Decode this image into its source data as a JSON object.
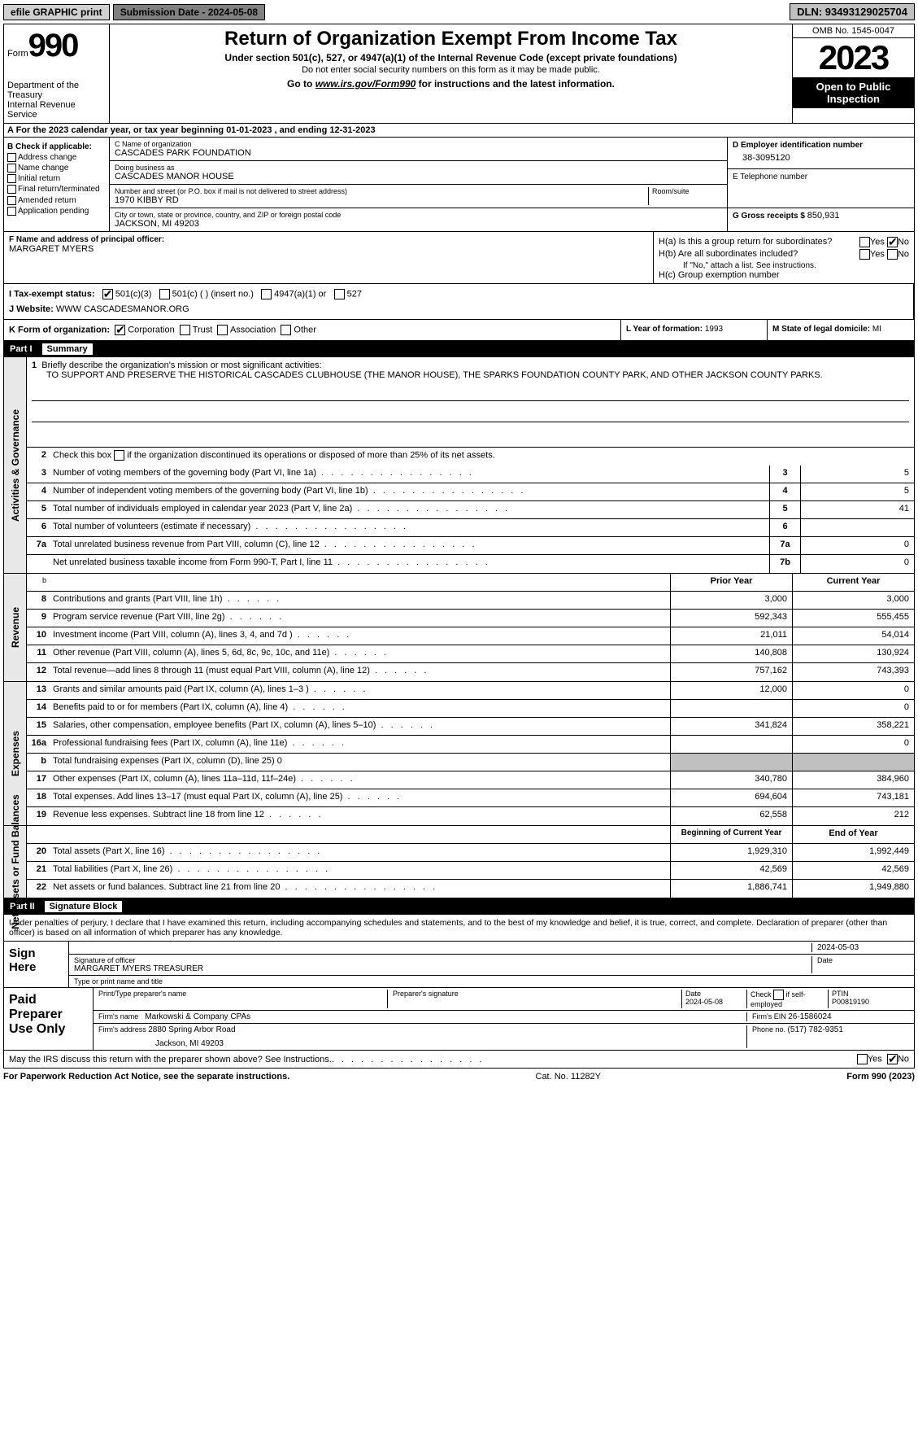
{
  "topbar": {
    "efile": "efile GRAPHIC print",
    "submission": "Submission Date - 2024-05-08",
    "dln": "DLN: 93493129025704"
  },
  "header": {
    "form_label": "Form",
    "form_num": "990",
    "dept1": "Department of the Treasury",
    "dept2": "Internal Revenue Service",
    "title": "Return of Organization Exempt From Income Tax",
    "sub1": "Under section 501(c), 527, or 4947(a)(1) of the Internal Revenue Code (except private foundations)",
    "sub2": "Do not enter social security numbers on this form as it may be made public.",
    "goto_prefix": "Go to ",
    "goto_link": "www.irs.gov/Form990",
    "goto_suffix": " for instructions and the latest information.",
    "omb": "OMB No. 1545-0047",
    "year": "2023",
    "open": "Open to Public Inspection"
  },
  "sectionA": "A For the 2023 calendar year, or tax year beginning 01-01-2023   , and ending 12-31-2023",
  "colB": {
    "header": "B Check if applicable:",
    "items": [
      "Address change",
      "Name change",
      "Initial return",
      "Final return/terminated",
      "Amended return",
      "Application pending"
    ]
  },
  "colC": {
    "name_label": "C Name of organization",
    "name": "CASCADES PARK FOUNDATION",
    "dba_label": "Doing business as",
    "dba": "CASCADES MANOR HOUSE",
    "street_label": "Number and street (or P.O. box if mail is not delivered to street address)",
    "street": "1970 KIBBY RD",
    "room_label": "Room/suite",
    "city_label": "City or town, state or province, country, and ZIP or foreign postal code",
    "city": "JACKSON, MI  49203"
  },
  "colDE": {
    "d_label": "D Employer identification number",
    "d_val": "38-3095120",
    "e_label": "E Telephone number",
    "g_label": "G Gross receipts $ ",
    "g_val": "850,931"
  },
  "rowF": {
    "f_label": "F  Name and address of principal officer:",
    "f_val": "MARGARET MYERS",
    "ha": "H(a)  Is this a group return for subordinates?",
    "hb": "H(b)  Are all subordinates included?",
    "hb_note": "If \"No,\" attach a list. See instructions.",
    "hc": "H(c)  Group exemption number  "
  },
  "rowI": {
    "i_label": "I    Tax-exempt status:",
    "i_501c3": "501(c)(3)",
    "i_501c": "501(c) (  ) (insert no.)",
    "i_4947": "4947(a)(1) or",
    "i_527": "527",
    "j_label": "J    Website: ",
    "j_val": "WWW CASCADESMANOR.ORG"
  },
  "rowK": {
    "k_label": "K Form of organization:",
    "k_corp": "Corporation",
    "k_trust": "Trust",
    "k_assoc": "Association",
    "k_other": "Other",
    "l_label": "L Year of formation: ",
    "l_val": "1993",
    "m_label": "M State of legal domicile: ",
    "m_val": "MI"
  },
  "part1": {
    "num": "Part I",
    "title": "Summary"
  },
  "summary": {
    "q1_label": "Briefly describe the organization's mission or most significant activities:",
    "q1_text": "TO SUPPORT AND PRESERVE THE HISTORICAL CASCADES CLUBHOUSE (THE MANOR HOUSE), THE SPARKS FOUNDATION COUNTY PARK, AND OTHER JACKSON COUNTY PARKS.",
    "q2": "Check this box       if the organization discontinued its operations or disposed of more than 25% of its net assets.",
    "rows_ag": [
      {
        "n": "3",
        "t": "Number of voting members of the governing body (Part VI, line 1a)",
        "box": "3",
        "v": "5"
      },
      {
        "n": "4",
        "t": "Number of independent voting members of the governing body (Part VI, line 1b)",
        "box": "4",
        "v": "5"
      },
      {
        "n": "5",
        "t": "Total number of individuals employed in calendar year 2023 (Part V, line 2a)",
        "box": "5",
        "v": "41"
      },
      {
        "n": "6",
        "t": "Total number of volunteers (estimate if necessary)",
        "box": "6",
        "v": ""
      },
      {
        "n": "7a",
        "t": "Total unrelated business revenue from Part VIII, column (C), line 12",
        "box": "7a",
        "v": "0"
      },
      {
        "n": "",
        "t": "Net unrelated business taxable income from Form 990-T, Part I, line 11",
        "box": "7b",
        "v": "0"
      }
    ],
    "col_prior": "Prior Year",
    "col_curr": "Current Year",
    "revenue": [
      {
        "n": "8",
        "t": "Contributions and grants (Part VIII, line 1h)",
        "p": "3,000",
        "c": "3,000"
      },
      {
        "n": "9",
        "t": "Program service revenue (Part VIII, line 2g)",
        "p": "592,343",
        "c": "555,455"
      },
      {
        "n": "10",
        "t": "Investment income (Part VIII, column (A), lines 3, 4, and 7d )",
        "p": "21,011",
        "c": "54,014"
      },
      {
        "n": "11",
        "t": "Other revenue (Part VIII, column (A), lines 5, 6d, 8c, 9c, 10c, and 11e)",
        "p": "140,808",
        "c": "130,924"
      },
      {
        "n": "12",
        "t": "Total revenue—add lines 8 through 11 (must equal Part VIII, column (A), line 12)",
        "p": "757,162",
        "c": "743,393"
      }
    ],
    "expenses": [
      {
        "n": "13",
        "t": "Grants and similar amounts paid (Part IX, column (A), lines 1–3 )",
        "p": "12,000",
        "c": "0"
      },
      {
        "n": "14",
        "t": "Benefits paid to or for members (Part IX, column (A), line 4)",
        "p": "",
        "c": "0"
      },
      {
        "n": "15",
        "t": "Salaries, other compensation, employee benefits (Part IX, column (A), lines 5–10)",
        "p": "341,824",
        "c": "358,221"
      },
      {
        "n": "16a",
        "t": "Professional fundraising fees (Part IX, column (A), line 11e)",
        "p": "",
        "c": "0"
      },
      {
        "n": "b",
        "t": "Total fundraising expenses (Part IX, column (D), line 25) 0",
        "p": "SHADE",
        "c": "SHADE"
      },
      {
        "n": "17",
        "t": "Other expenses (Part IX, column (A), lines 11a–11d, 11f–24e)",
        "p": "340,780",
        "c": "384,960"
      },
      {
        "n": "18",
        "t": "Total expenses. Add lines 13–17 (must equal Part IX, column (A), line 25)",
        "p": "694,604",
        "c": "743,181"
      },
      {
        "n": "19",
        "t": "Revenue less expenses. Subtract line 18 from line 12",
        "p": "62,558",
        "c": "212"
      }
    ],
    "col_begin": "Beginning of Current Year",
    "col_end": "End of Year",
    "netassets": [
      {
        "n": "20",
        "t": "Total assets (Part X, line 16)",
        "p": "1,929,310",
        "c": "1,992,449"
      },
      {
        "n": "21",
        "t": "Total liabilities (Part X, line 26)",
        "p": "42,569",
        "c": "42,569"
      },
      {
        "n": "22",
        "t": "Net assets or fund balances. Subtract line 21 from line 20",
        "p": "1,886,741",
        "c": "1,949,880"
      }
    ],
    "side_ag": "Activities & Governance",
    "side_rev": "Revenue",
    "side_exp": "Expenses",
    "side_net": "Net Assets or Fund Balances"
  },
  "part2": {
    "num": "Part II",
    "title": "Signature Block",
    "intro": "Under penalties of perjury, I declare that I have examined this return, including accompanying schedules and statements, and to the best of my knowledge and belief, it is true, correct, and complete. Declaration of preparer (other than officer) is based on all information of which preparer has any knowledge.",
    "sign_here": "Sign Here",
    "sig_officer_label": "Signature of officer",
    "sig_officer": "MARGARET MYERS TREASURER",
    "sig_type_label": "Type or print name and title",
    "sig_date": "2024-05-03",
    "date_label": "Date",
    "paid": "Paid Preparer Use Only",
    "prep_name_label": "Print/Type preparer's name",
    "prep_sig_label": "Preparer's signature",
    "prep_date": "2024-05-08",
    "prep_check": "Check         if self-employed",
    "ptin_label": "PTIN",
    "ptin": "P00819190",
    "firm_name_label": "Firm's name   ",
    "firm_name": "Markowski & Company CPAs",
    "firm_ein_label": "Firm's EIN  ",
    "firm_ein": "26-1586024",
    "firm_addr_label": "Firm's address ",
    "firm_addr1": "2880 Spring Arbor Road",
    "firm_addr2": "Jackson, MI  49203",
    "phone_label": "Phone no. ",
    "phone": "(517) 782-9351",
    "discuss": "May the IRS discuss this return with the preparer shown above? See Instructions.",
    "yes": "Yes",
    "no": "No"
  },
  "footer": {
    "left": "For Paperwork Reduction Act Notice, see the separate instructions.",
    "mid": "Cat. No. 11282Y",
    "right": "Form 990 (2023)"
  }
}
